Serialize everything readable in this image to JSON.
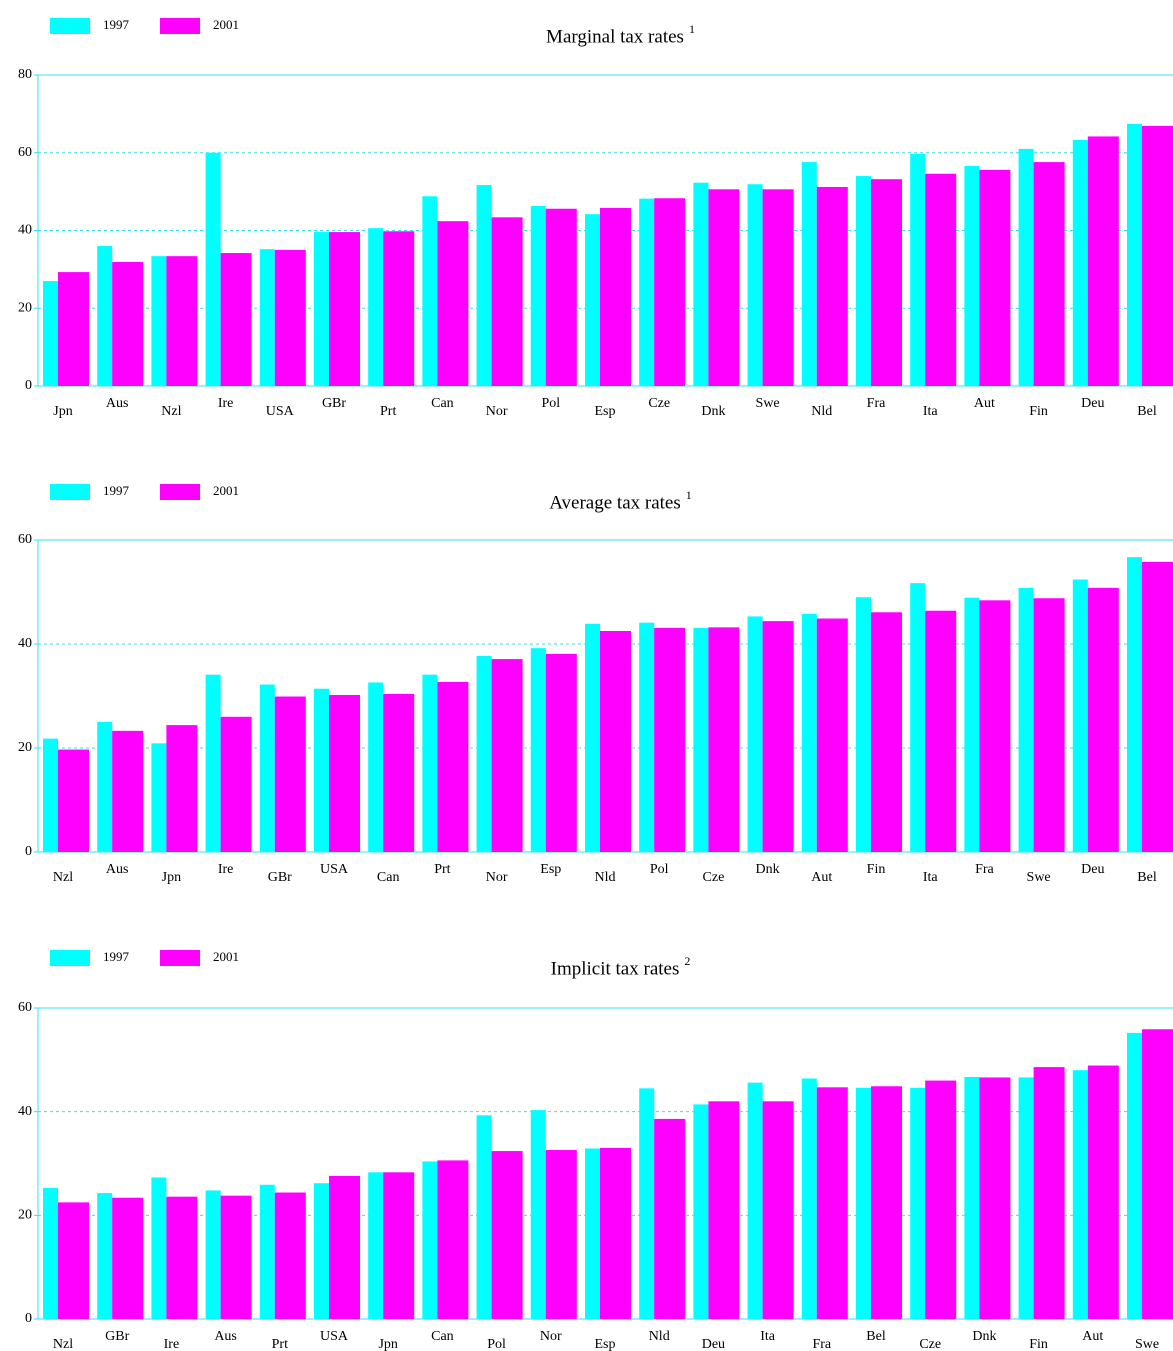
{
  "chart_data": [
    {
      "type": "bar",
      "title": "Marginal tax rates",
      "title_note": "1",
      "categories": [
        "Jpn",
        "Aus",
        "Nzl",
        "Ire",
        "USA",
        "GBr",
        "Prt",
        "Can",
        "Nor",
        "Pol",
        "Esp",
        "Cze",
        "Dnk",
        "Swe",
        "Nld",
        "Fra",
        "Ita",
        "Aut",
        "Fin",
        "Deu",
        "Bel"
      ],
      "series": [
        {
          "name": "1997",
          "color": "#00ffff",
          "values": [
            27,
            36,
            33.4,
            60,
            35.2,
            39.6,
            40.6,
            48.8,
            51.7,
            46.3,
            44.2,
            48.2,
            52.3,
            51.9,
            57.6,
            54,
            59.7,
            56.6,
            61,
            63.3,
            67.4
          ]
        },
        {
          "name": "2001",
          "color": "#ff00ff",
          "values": [
            29.3,
            31.9,
            33.4,
            34.2,
            35,
            39.6,
            39.8,
            42.4,
            43.4,
            45.6,
            45.8,
            48.3,
            50.6,
            50.6,
            51.2,
            53.2,
            54.6,
            55.6,
            57.6,
            64.2,
            66.9
          ]
        }
      ],
      "ylim": [
        0,
        80
      ],
      "yticks": [
        0,
        20,
        40,
        60,
        80
      ],
      "grid": true
    },
    {
      "type": "bar",
      "title": "Average tax rates",
      "title_note": "1",
      "categories": [
        "Nzl",
        "Aus",
        "Jpn",
        "Ire",
        "GBr",
        "USA",
        "Can",
        "Prt",
        "Nor",
        "Esp",
        "Nld",
        "Pol",
        "Cze",
        "Dnk",
        "Aut",
        "Fin",
        "Ita",
        "Fra",
        "Swe",
        "Deu",
        "Bel"
      ],
      "series": [
        {
          "name": "1997",
          "color": "#00ffff",
          "values": [
            21.8,
            25,
            20.9,
            34.1,
            32.2,
            31.4,
            32.6,
            34.1,
            37.7,
            39.2,
            43.9,
            44.1,
            43.1,
            45.3,
            45.8,
            49,
            51.7,
            48.9,
            50.8,
            52.4,
            56.7
          ]
        },
        {
          "name": "2001",
          "color": "#ff00ff",
          "values": [
            19.7,
            23.3,
            24.4,
            26,
            29.9,
            30.2,
            30.4,
            32.7,
            37.1,
            38.1,
            42.5,
            43.1,
            43.2,
            44.4,
            44.9,
            46.1,
            46.4,
            48.4,
            48.8,
            50.8,
            55.8
          ]
        }
      ],
      "ylim": [
        0,
        60
      ],
      "yticks": [
        0,
        20,
        40,
        60
      ],
      "grid": true
    },
    {
      "type": "bar",
      "title": "Implicit tax rates",
      "title_note": "2",
      "categories": [
        "Nzl",
        "GBr",
        "Ire",
        "Aus",
        "Prt",
        "USA",
        "Jpn",
        "Can",
        "Pol",
        "Nor",
        "Esp",
        "Nld",
        "Deu",
        "Ita",
        "Fra",
        "Bel",
        "Cze",
        "Dnk",
        "Fin",
        "Aut",
        "Swe"
      ],
      "series": [
        {
          "name": "1997",
          "color": "#00ffff",
          "values": [
            25.3,
            24.3,
            27.3,
            24.8,
            25.9,
            26.2,
            28.3,
            30.4,
            39.3,
            40.3,
            32.9,
            44.5,
            41.4,
            45.6,
            46.4,
            44.6,
            44.6,
            46.7,
            46.6,
            48,
            55.2
          ]
        },
        {
          "name": "2001",
          "color": "#ff00ff",
          "values": [
            22.5,
            23.4,
            23.6,
            23.8,
            24.4,
            27.6,
            28.3,
            30.6,
            32.4,
            32.6,
            33,
            38.6,
            42,
            42,
            44.7,
            44.9,
            46,
            46.6,
            48.6,
            48.9,
            55.9
          ]
        }
      ],
      "ylim": [
        0,
        60
      ],
      "yticks": [
        0,
        20,
        40,
        60
      ],
      "grid": true
    }
  ]
}
